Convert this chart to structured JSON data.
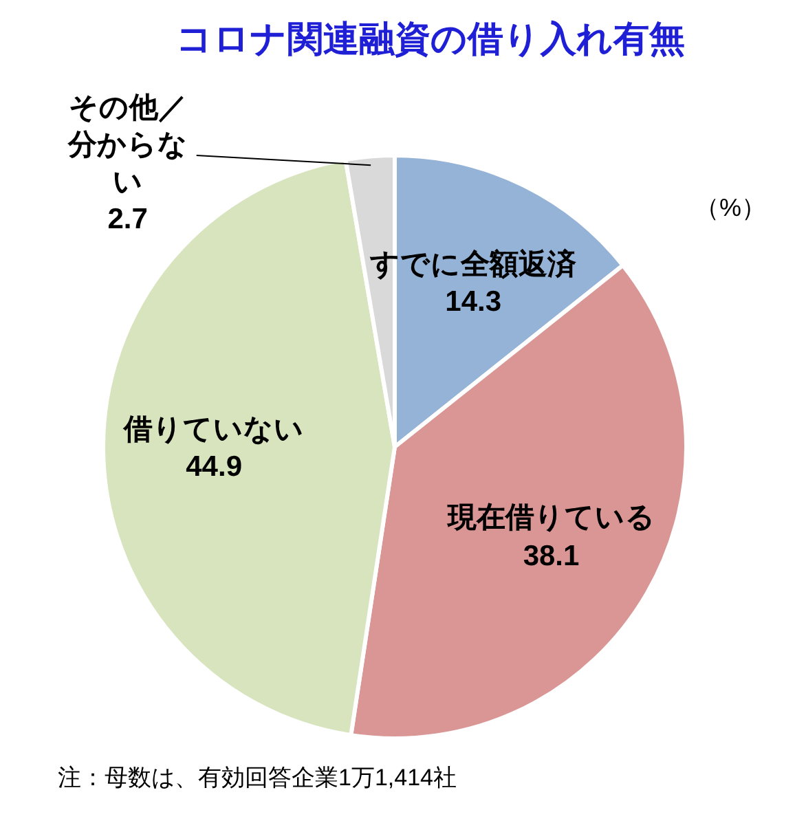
{
  "chart_data": {
    "type": "pie",
    "title": "コロナ関連融資の借り入れ有無",
    "categories": [
      "すでに全額返済",
      "現在借りている",
      "借りていない",
      "その他／分からない"
    ],
    "values": [
      14.3,
      38.1,
      44.9,
      2.7
    ],
    "colors": [
      "#95b3d7",
      "#d99694",
      "#d7e4bd",
      "#d9d9d9"
    ],
    "data_labels": true,
    "annotations": [
      "（%）",
      "注：母数は、有効回答企業1万1,414社"
    ]
  }
}
